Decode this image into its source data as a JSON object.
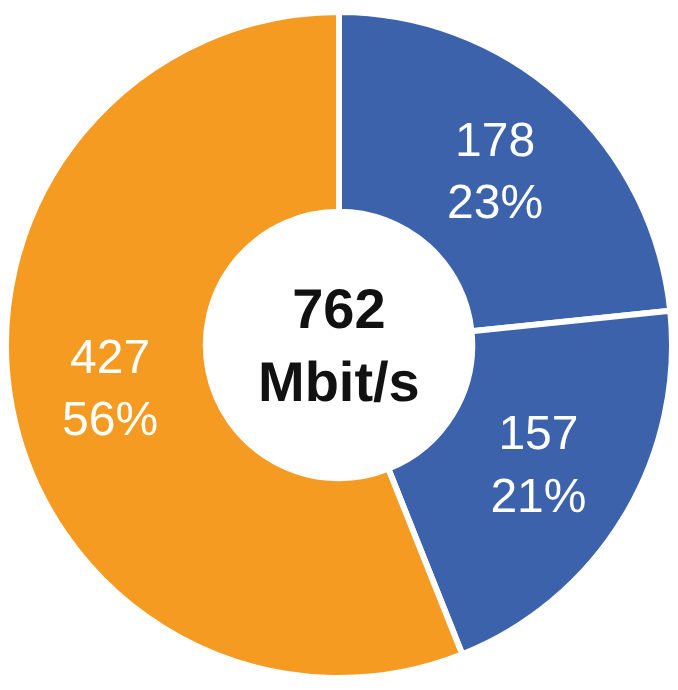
{
  "chart_data": {
    "type": "donut",
    "categories": [
      null,
      null,
      null
    ],
    "values": [
      178,
      157,
      427
    ],
    "colors": [
      "#3c62ac",
      "#3c62ac",
      "#f59b22"
    ],
    "value_labels": [
      "178\n23%",
      "157\n21%",
      "427\n56%"
    ],
    "annotations": [
      "762\nMbit/s"
    ]
  }
}
